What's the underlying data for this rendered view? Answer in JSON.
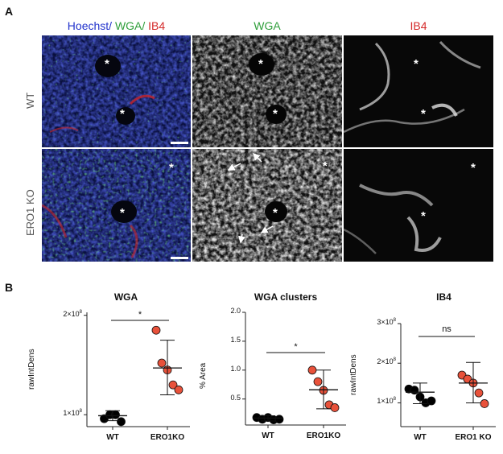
{
  "panelA": {
    "letter": "A",
    "col_titles": {
      "merge_hoechst": "Hoechst/",
      "merge_wga": "WGA/",
      "merge_ib4": "IB4",
      "wga": "WGA",
      "ib4": "IB4"
    },
    "rows": [
      "WT",
      "ERO1 KO"
    ],
    "asterisk": "*",
    "colors": {
      "hoechst": "#2233cc",
      "wga": "#2e9e3a",
      "ib4": "#d42a2a"
    }
  },
  "panelB": {
    "letter": "B"
  },
  "chart_data": [
    {
      "type": "scatter",
      "title": "WGA",
      "ylabel": "rawIntDens",
      "categories": [
        "WT",
        "ERO1KO"
      ],
      "yticks": [
        {
          "base": "1×10",
          "exp": "8",
          "value": 100000000
        },
        {
          "base": "2×10",
          "exp": "8",
          "value": 200000000
        }
      ],
      "ylim": [
        88000000,
        203000000
      ],
      "series": [
        {
          "values": [
            96000000,
            100000000,
            100000000,
            93000000
          ],
          "mean": 99000000,
          "sd_low": 94000000,
          "sd_high": 104000000,
          "color": "#000000"
        },
        {
          "values": [
            185000000,
            152000000,
            145000000,
            130000000,
            125000000
          ],
          "mean": 147000000,
          "sd_low": 120000000,
          "sd_high": 175000000,
          "color": "#e8513a"
        }
      ],
      "significance": "*"
    },
    {
      "type": "scatter",
      "title": "WGA clusters",
      "ylabel": "% Area",
      "categories": [
        "WT",
        "ERO1KO"
      ],
      "yticks": [
        {
          "label": "0.5",
          "value": 0.5
        },
        {
          "label": "1.0",
          "value": 1.0
        },
        {
          "label": "1.5",
          "value": 1.5
        },
        {
          "label": "2.0",
          "value": 2.0
        }
      ],
      "ylim": [
        0.05,
        2.0
      ],
      "series": [
        {
          "values": [
            0.18,
            0.15,
            0.18,
            0.14,
            0.15
          ],
          "mean": 0.17,
          "sd_low": 0.12,
          "sd_high": 0.21,
          "color": "#000000"
        },
        {
          "values": [
            1.0,
            0.8,
            0.65,
            0.4,
            0.35
          ],
          "mean": 0.66,
          "sd_low": 0.33,
          "sd_high": 1.0,
          "color": "#e8513a"
        }
      ],
      "significance": "*"
    },
    {
      "type": "scatter",
      "title": "IB4",
      "ylabel": "rawIntDens",
      "categories": [
        "WT",
        "ERO1 KO"
      ],
      "yticks": [
        {
          "base": "1×10",
          "exp": "8",
          "value": 100000000
        },
        {
          "base": "2×10",
          "exp": "8",
          "value": 200000000
        },
        {
          "base": "3×10",
          "exp": "8",
          "value": 300000000
        }
      ],
      "ylim": [
        40000000,
        300000000
      ],
      "series": [
        {
          "values": [
            135000000,
            132000000,
            115000000,
            100000000,
            105000000
          ],
          "mean": 127000000,
          "sd_low": 98000000,
          "sd_high": 150000000,
          "color": "#000000"
        },
        {
          "values": [
            170000000,
            160000000,
            150000000,
            125000000,
            98000000
          ],
          "mean": 150000000,
          "sd_low": 100000000,
          "sd_high": 202000000,
          "color": "#e8513a"
        }
      ],
      "significance": "ns"
    }
  ]
}
